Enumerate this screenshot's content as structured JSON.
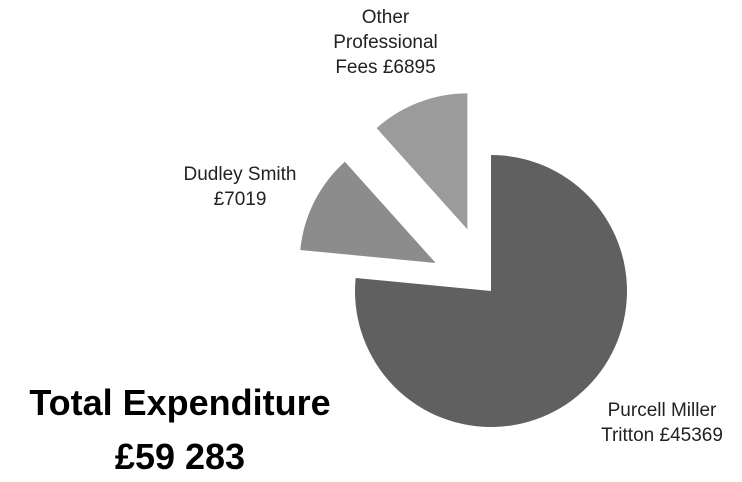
{
  "chart_data": {
    "type": "pie",
    "categories": [
      "Purcell Miller Tritton",
      "Dudley Smith",
      "Other Professional Fees"
    ],
    "values": [
      45369,
      7019,
      6895
    ],
    "value_labels": [
      "£45369",
      "£7019",
      "£6895"
    ],
    "colors": [
      "#606060",
      "#8c8c8c",
      "#9b9b9b"
    ],
    "total_title": "Total Expenditure",
    "total_label": "£59 283"
  }
}
